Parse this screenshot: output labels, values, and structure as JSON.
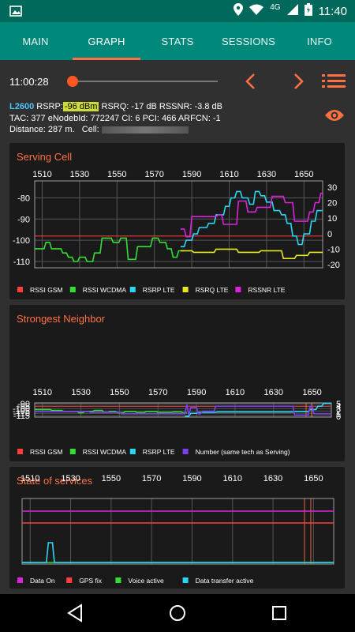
{
  "status_bar": {
    "network": "4G",
    "time": "11:40",
    "icons": [
      "image-icon",
      "location-icon",
      "wifi-icon",
      "signal-icon",
      "battery-icon"
    ]
  },
  "tabs": [
    {
      "label": "MAIN",
      "active": false
    },
    {
      "label": "GRAPH",
      "active": true
    },
    {
      "label": "STATS",
      "active": false
    },
    {
      "label": "SESSIONS",
      "active": false
    },
    {
      "label": "INFO",
      "active": false
    }
  ],
  "playback": {
    "time": "11:00:28",
    "position": 0.02
  },
  "cell_info": {
    "band": "L2600",
    "rsrp_label": "RSRP:",
    "rsrp_value": "-96 dBm",
    "rsrq": "RSRQ: -17 dB",
    "rssnr": "RSSNR: -3.8 dB",
    "line2": "TAC: 377  eNodebId: 772247  CI: 6  PCI: 466  ARFCN: -1",
    "distance": "Distance: 287 m.",
    "cell_label": "Cell:"
  },
  "colors": {
    "accent": "#ff7043",
    "teal": "#00897b",
    "rsrp_lte": "#29d6f5",
    "rssi_wcdma": "#33dd33",
    "rsrq_lte": "#e8e820",
    "rssnr_lte": "#dd22dd",
    "rssi_gsm": "#ff3d3d",
    "number": "#7b3ff0"
  },
  "chart_data": [
    {
      "type": "line",
      "title": "Serving Cell",
      "x_ticks": [
        "1510",
        "1530",
        "1550",
        "1570",
        "1590",
        "1610",
        "1630",
        "1650"
      ],
      "xlim": [
        1506,
        1660
      ],
      "y_ticks": [
        "-80",
        "-90",
        "-100",
        "-110"
      ],
      "ylim": [
        -113,
        -72
      ],
      "y2_ticks": [
        "30",
        "20",
        "10",
        "0",
        "-10",
        "-20"
      ],
      "y2lim": [
        -22,
        34
      ],
      "legend": [
        "RSSI GSM",
        "RSSI WCDMA",
        "RSRP LTE",
        "RSRQ LTE",
        "RSSNR LTE"
      ],
      "reference_lines": [
        {
          "axis": "y",
          "value": -98,
          "series": "RSSI GSM"
        }
      ],
      "series": [
        {
          "name": "RSSI WCDMA",
          "axis": "y",
          "x": [
            1506,
            1511,
            1512,
            1514,
            1515,
            1520,
            1521,
            1523,
            1524,
            1526,
            1527,
            1529,
            1530,
            1533,
            1534,
            1537,
            1538,
            1541,
            1542,
            1547,
            1548,
            1551,
            1552,
            1555,
            1556,
            1560,
            1561,
            1568,
            1569,
            1572,
            1573,
            1576,
            1577,
            1579,
            1580,
            1582,
            1583,
            1586
          ],
          "y": [
            -104,
            -104,
            -101,
            -101,
            -104,
            -104,
            -106,
            -106,
            -108,
            -108,
            -110,
            -110,
            -108,
            -108,
            -110,
            -110,
            -106,
            -106,
            -99,
            -99,
            -101,
            -101,
            -99,
            -99,
            -109,
            -109,
            -103,
            -103,
            -99,
            -99,
            -101,
            -101,
            -104,
            -104,
            -108,
            -108,
            -105,
            -105
          ]
        },
        {
          "name": "RSRP LTE",
          "axis": "y",
          "x": [
            1584,
            1586,
            1587,
            1590,
            1591,
            1593,
            1594,
            1598,
            1599,
            1602,
            1603,
            1607,
            1608,
            1610,
            1611,
            1613,
            1614,
            1616,
            1617,
            1620,
            1621,
            1623,
            1624,
            1626,
            1627,
            1629,
            1630,
            1633,
            1634,
            1637,
            1638,
            1640,
            1641,
            1643,
            1644,
            1646,
            1647,
            1649,
            1650,
            1653,
            1654,
            1656,
            1657,
            1660
          ],
          "y": [
            -103,
            -103,
            -100,
            -100,
            -97,
            -97,
            -94,
            -94,
            -92,
            -92,
            -88,
            -88,
            -84,
            -84,
            -80,
            -80,
            -77,
            -77,
            -80,
            -80,
            -83,
            -83,
            -77,
            -77,
            -79,
            -79,
            -82,
            -82,
            -86,
            -86,
            -88,
            -88,
            -92,
            -92,
            -98,
            -98,
            -102,
            -102,
            -97,
            -97,
            -91,
            -91,
            -86,
            -86
          ]
        },
        {
          "name": "RSRQ LTE",
          "axis": "y2",
          "x": [
            1584,
            1590,
            1591,
            1602,
            1603,
            1614,
            1615,
            1626,
            1627,
            1638,
            1639,
            1645,
            1646,
            1652,
            1653,
            1660
          ],
          "y": [
            -11,
            -11,
            -12,
            -12,
            -10,
            -10,
            -12,
            -12,
            -11,
            -11,
            -16,
            -16,
            -14,
            -14,
            -12,
            -12
          ]
        },
        {
          "name": "RSSNR LTE",
          "axis": "y2",
          "x": [
            1584,
            1586,
            1587,
            1589,
            1590,
            1603,
            1604,
            1606,
            1607,
            1614,
            1615,
            1619,
            1620,
            1624,
            1625,
            1632,
            1633,
            1639,
            1640,
            1644,
            1645,
            1652,
            1653,
            1655,
            1656,
            1658,
            1659,
            1660
          ],
          "y": [
            3,
            3,
            -2,
            -2,
            11,
            11,
            12,
            12,
            6,
            6,
            21,
            21,
            14,
            14,
            17,
            17,
            24,
            24,
            20,
            20,
            8,
            8,
            14,
            14,
            20,
            20,
            26,
            26
          ]
        }
      ]
    },
    {
      "type": "line",
      "title": "Strongest Neighbor",
      "x_ticks": [
        "1510",
        "1530",
        "1550",
        "1570",
        "1590",
        "1610",
        "1630",
        "1650"
      ],
      "xlim": [
        1506,
        1660
      ],
      "y_ticks": [
        "-90",
        "-95",
        "-100",
        "-105",
        "-110",
        "-115"
      ],
      "ylim": [
        -118,
        -88
      ],
      "y2_ticks": [
        "5",
        "4",
        "3",
        "2",
        "1",
        "0"
      ],
      "y2lim": [
        -0.3,
        5.3
      ],
      "legend": [
        "RSSI GSM",
        "RSSI WCDMA",
        "RSRP LTE",
        "Number (same tech as Serving)"
      ],
      "reference_lines": [
        {
          "axis": "y",
          "value": -95,
          "series": "RSSI GSM"
        }
      ],
      "series": [
        {
          "name": "RSSI WCDMA",
          "axis": "y",
          "x": [
            1506,
            1514,
            1515,
            1520,
            1521,
            1528,
            1529,
            1531,
            1532,
            1536,
            1537,
            1541,
            1542,
            1544,
            1545,
            1548,
            1549,
            1552,
            1553,
            1558,
            1559,
            1563,
            1564,
            1569,
            1570,
            1577,
            1578,
            1582,
            1583,
            1585
          ],
          "y": [
            -102,
            -102,
            -104,
            -104,
            -106,
            -106,
            -109,
            -109,
            -106,
            -106,
            -104,
            -104,
            -108,
            -108,
            -106,
            -106,
            -109,
            -109,
            -106,
            -106,
            -108,
            -108,
            -106,
            -106,
            -108,
            -108,
            -107,
            -107,
            -109,
            -109
          ]
        },
        {
          "name": "RSRP LTE",
          "axis": "y",
          "x": [
            1584,
            1586,
            1587,
            1590,
            1591,
            1600,
            1601,
            1640,
            1641,
            1648,
            1649,
            1652,
            1653,
            1655,
            1656,
            1660
          ],
          "y": [
            -116,
            -116,
            -110,
            -110,
            -108,
            -108,
            -107,
            -107,
            -106,
            -106,
            -102,
            -102,
            -95,
            -95,
            -89,
            -89
          ]
        },
        {
          "name": "Number (same tech as Serving)",
          "axis": "y2",
          "x": [
            1506,
            1534,
            1535,
            1550,
            1551,
            1584,
            1585,
            1586,
            1587,
            1590,
            1591,
            1592,
            1593,
            1599,
            1600,
            1640,
            1641,
            1648,
            1649,
            1650,
            1651,
            1660
          ],
          "y": [
            1.9,
            1.9,
            1.6,
            1.6,
            1,
            1,
            4.7,
            0.4,
            3.5,
            3.5,
            1,
            1,
            2,
            2,
            4,
            4,
            0.5,
            0.5,
            4,
            4,
            1,
            1
          ]
        }
      ]
    },
    {
      "type": "line",
      "title": "State of services",
      "x_ticks": [
        "1510",
        "1530",
        "1550",
        "1570",
        "1590",
        "1610",
        "1630",
        "1650"
      ],
      "xlim": [
        1506,
        1660
      ],
      "legend": [
        "Data On",
        "GPS fix",
        "Voice active",
        "Data transfer active"
      ],
      "series": [
        {
          "name": "Data On",
          "x": [
            1506,
            1660
          ],
          "y": [
            1,
            1
          ]
        },
        {
          "name": "GPS fix",
          "x": [
            1506,
            1660
          ],
          "y": [
            1,
            1
          ]
        },
        {
          "name": "Voice active",
          "x": [
            1506,
            1660
          ],
          "y": [
            0,
            0
          ]
        },
        {
          "name": "Data transfer active",
          "x": [
            1506,
            1518,
            1519,
            1521,
            1522,
            1660
          ],
          "y": [
            0,
            0,
            1,
            1,
            0,
            0
          ]
        }
      ]
    }
  ]
}
